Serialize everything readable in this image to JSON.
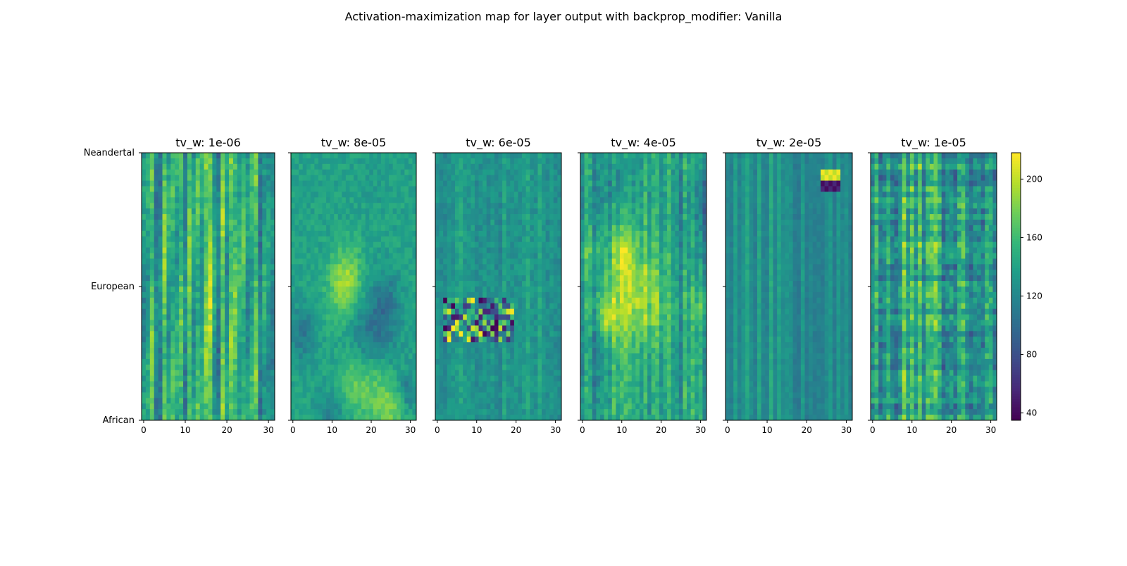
{
  "figure": {
    "suptitle": "Activation-maximization map for layer output with backprop_modifier: Vanilla"
  },
  "chart_data": {
    "type": "heatmap",
    "colormap": "viridis",
    "grid": false,
    "shared_y_tick_labels": [
      "Neandertal",
      "European",
      "African"
    ],
    "x_ticks": [
      0,
      10,
      20,
      30
    ],
    "xlim": [
      0,
      31
    ],
    "colorbar": {
      "ticks": [
        40,
        80,
        120,
        160,
        200
      ],
      "range": [
        35,
        218
      ]
    },
    "panels": [
      {
        "title": "tv_w: 1e-06",
        "style": "streaky",
        "seed": 11
      },
      {
        "title": "tv_w: 8e-05",
        "style": "blobby",
        "seed": 23
      },
      {
        "title": "tv_w: 6e-05",
        "style": "smooth_noise",
        "seed": 37
      },
      {
        "title": "tv_w: 4e-05",
        "style": "mixed",
        "seed": 41
      },
      {
        "title": "tv_w: 2e-05",
        "style": "smooth",
        "seed": 53
      },
      {
        "title": "tv_w: 1e-05",
        "style": "streaky_dark",
        "seed": 67
      }
    ]
  }
}
